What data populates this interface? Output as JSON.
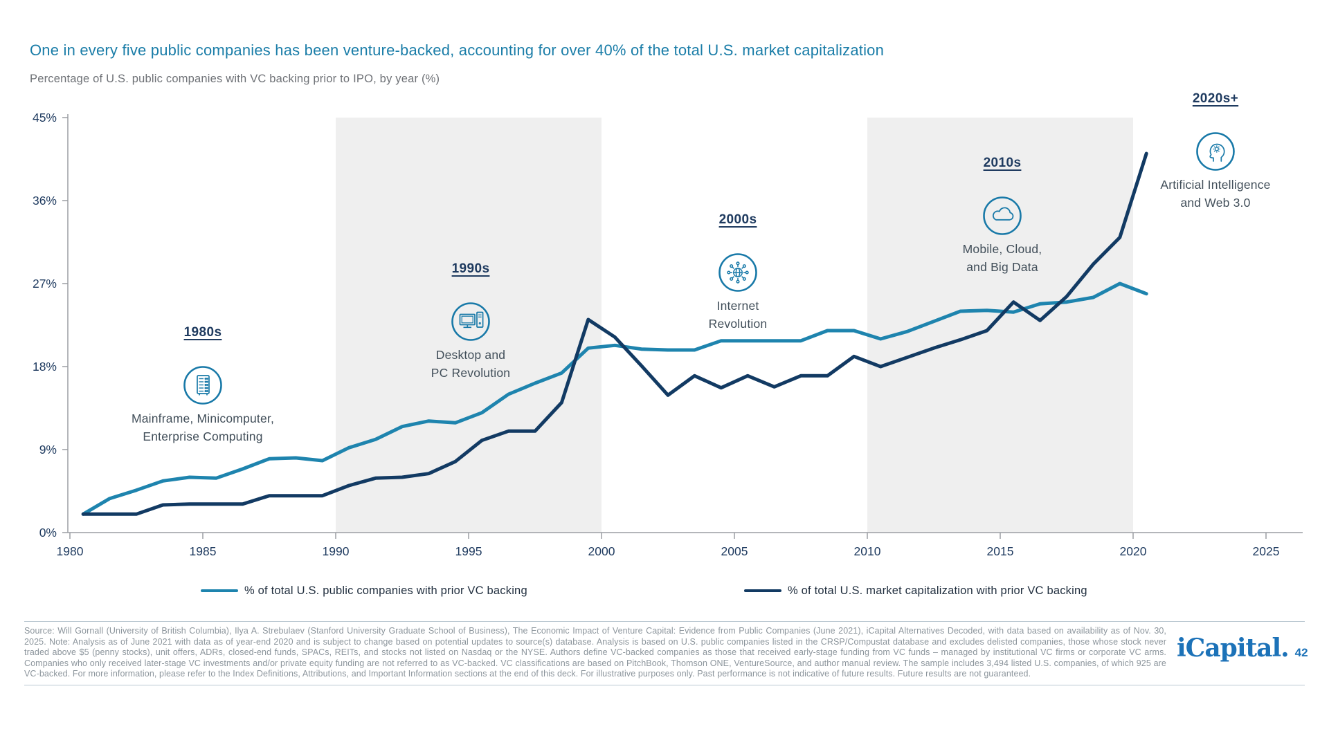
{
  "page": {
    "title": "One in every five public companies has been venture-backed, accounting for over 40% of the total U.S. market capitalization",
    "subtitle": "Percentage of U.S. public companies with VC backing prior to IPO, by year (%)",
    "source_note": "Source: Will Gornall (University of British Columbia), Ilya A. Strebulaev (Stanford University Graduate School of Business), The Economic Impact of Venture Capital: Evidence from Public Companies (June 2021), iCapital Alternatives Decoded, with data based on availability as of Nov. 30, 2025. Note: Analysis as of June 2021 with data as of year-end 2020 and is subject to change based on potential updates to source(s) database. Analysis is based on U.S. public companies listed in the CRSP/Compustat database and excludes delisted companies, those whose stock never traded above $5 (penny stocks), unit offers, ADRs, closed-end funds, SPACs, REITs, and stocks not listed on Nasdaq or the NYSE. Authors define VC-backed companies as those that received early-stage funding from VC funds – managed by institutional VC firms or corporate VC arms. Companies who only received later-stage VC investments and/or private equity funding are not referred to as VC-backed. VC classifications are based on PitchBook, Thomson ONE, VentureSource, and author manual review. The sample includes 3,494 listed U.S. companies, of which 925 are VC-backed. For more information, please refer to the Index Definitions, Attributions, and Important Information sections at the end of this deck. For illustrative purposes only. Past performance is not indicative of future results. Future results are not guaranteed.",
    "logo_text": "iCapital.",
    "page_number": "42"
  },
  "colors": {
    "title_accent": "#1A7DA8",
    "series_companies": "#1E84AE",
    "series_market_cap": "#123A63",
    "axis_line": "#9B9EA3",
    "axis_label": "#1E3A5F",
    "decade_band": "#EFEFEF",
    "icon_accent": "#1879A8",
    "logo_blue": "#1C72B8"
  },
  "chart_data": {
    "type": "line",
    "title": "Percentage of U.S. public companies with VC backing prior to IPO, by year (%)",
    "xlabel": "",
    "ylabel": "",
    "grid": false,
    "legend_position": "bottom",
    "xlim": [
      1980,
      2025
    ],
    "ylim": [
      0,
      45
    ],
    "x_ticks": [
      1980,
      1985,
      1990,
      1995,
      2000,
      2005,
      2010,
      2015,
      2020,
      2025
    ],
    "y_ticks": [
      0,
      9,
      18,
      27,
      36,
      45
    ],
    "y_tick_labels": [
      "0%",
      "9%",
      "18%",
      "27%",
      "36%",
      "45%"
    ],
    "shaded_bands": [
      {
        "from": 1990,
        "to": 2000
      },
      {
        "from": 2010,
        "to": 2020
      }
    ],
    "x": [
      1980,
      1981,
      1982,
      1983,
      1984,
      1985,
      1986,
      1987,
      1988,
      1989,
      1990,
      1991,
      1992,
      1993,
      1994,
      1995,
      1996,
      1997,
      1998,
      1999,
      2000,
      2001,
      2002,
      2003,
      2004,
      2005,
      2006,
      2007,
      2008,
      2009,
      2010,
      2011,
      2012,
      2013,
      2014,
      2015,
      2016,
      2017,
      2018,
      2019,
      2020
    ],
    "series": [
      {
        "name": "% of total U.S. public companies with prior VC backing",
        "color": "#1E84AE",
        "values": [
          2.0,
          3.7,
          4.6,
          5.6,
          6.0,
          5.9,
          6.9,
          8.0,
          8.1,
          7.8,
          9.2,
          10.1,
          11.5,
          12.1,
          11.9,
          13.0,
          15.0,
          16.2,
          17.3,
          20.0,
          20.3,
          19.9,
          19.8,
          19.8,
          20.8,
          20.8,
          20.8,
          20.8,
          21.9,
          21.9,
          21.0,
          21.8,
          22.9,
          24.0,
          24.1,
          23.9,
          24.8,
          25.0,
          25.5,
          27.0,
          25.9
        ]
      },
      {
        "name": "% of total U.S. market capitalization with prior VC backing",
        "color": "#123A63",
        "values": [
          2.0,
          2.0,
          2.0,
          3.0,
          3.1,
          3.1,
          3.1,
          4.0,
          4.0,
          4.0,
          5.1,
          5.9,
          6.0,
          6.4,
          7.7,
          10.0,
          11.0,
          11.0,
          14.1,
          23.1,
          21.2,
          18.1,
          14.9,
          17.0,
          15.7,
          17.0,
          15.8,
          17.0,
          17.0,
          19.1,
          18.0,
          19.0,
          20.0,
          20.9,
          21.9,
          25.0,
          23.0,
          25.6,
          29.1,
          32.0,
          41.1
        ]
      }
    ],
    "eras": [
      {
        "decade": "1980s",
        "icon": "mainframe-icon",
        "caption_line1": "Mainframe, Minicomputer,",
        "caption_line2": "Enterprise Computing"
      },
      {
        "decade": "1990s",
        "icon": "desktop-pc-icon",
        "caption_line1": "Desktop and",
        "caption_line2": "PC Revolution"
      },
      {
        "decade": "2000s",
        "icon": "internet-globe-icon",
        "caption_line1": "Internet",
        "caption_line2": "Revolution"
      },
      {
        "decade": "2010s",
        "icon": "cloud-icon",
        "caption_line1": "Mobile, Cloud,",
        "caption_line2": "and Big Data"
      },
      {
        "decade": "2020s+",
        "icon": "ai-head-icon",
        "caption_line1": "Artificial Intelligence",
        "caption_line2": "and Web 3.0"
      }
    ]
  }
}
